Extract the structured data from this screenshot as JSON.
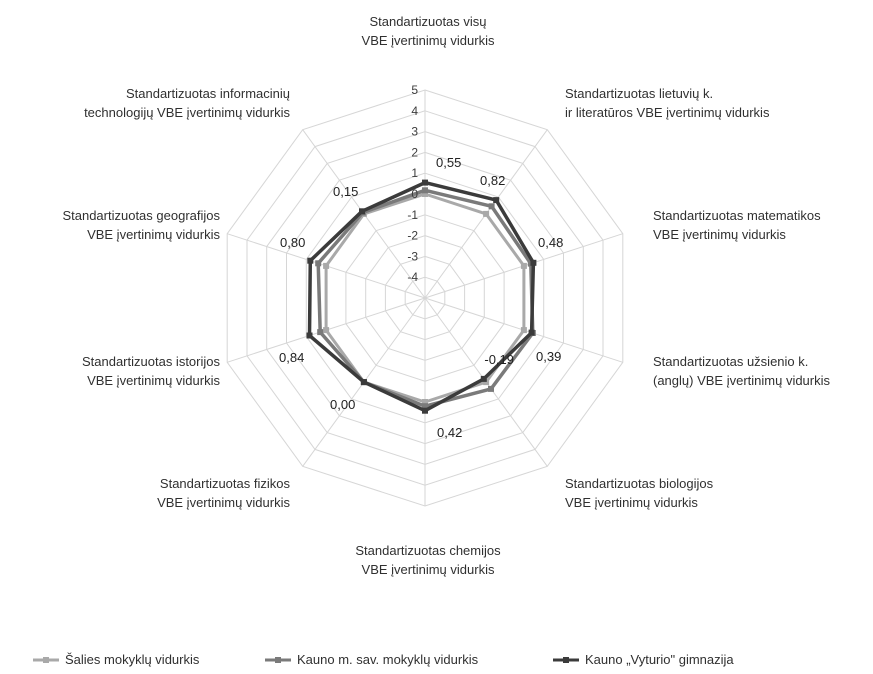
{
  "chart_data": {
    "type": "radar",
    "axes": [
      "Standartizuotas visų VBE įvertinimų vidurkis",
      "Standartizuotas lietuvių k. ir literatūros VBE įvertinimų vidurkis",
      "Standartizuotas matematikos VBE įvertinimų vidurkis",
      "Standartizuotas užsienio k. (anglų) VBE įvertinimų vidurkis",
      "Standartizuotas biologijos VBE įvertinimų vidurkis",
      "Standartizuotas chemijos VBE įvertinimų vidurkis",
      "Standartizuotas fizikos VBE įvertinimų vidurkis",
      "Standartizuotas istorijos VBE įvertinimų vidurkis",
      "Standartizuotas geografijos VBE įvertinimų vidurkis",
      "Standartizuotas informacinių technologijų VBE įvertinimų vidurkis"
    ],
    "axis_label_lines": [
      [
        "Standartizuotas visų",
        "VBE įvertinimų vidurkis"
      ],
      [
        "Standartizuotas lietuvių k.",
        "ir literatūros VBE įvertinimų vidurkis"
      ],
      [
        "Standartizuotas matematikos",
        "VBE įvertinimų vidurkis"
      ],
      [
        "Standartizuotas užsienio k.",
        "(anglų) VBE įvertinimų vidurkis"
      ],
      [
        "Standartizuotas biologijos",
        "VBE įvertinimų vidurkis"
      ],
      [
        "Standartizuotas chemijos",
        "VBE įvertinimų vidurkis"
      ],
      [
        "Standartizuotas fizikos",
        "VBE įvertinimų vidurkis"
      ],
      [
        "Standartizuotas istorijos",
        "VBE įvertinimų vidurkis"
      ],
      [
        "Standartizuotas geografijos",
        "VBE įvertinimų vidurkis"
      ],
      [
        "Standartizuotas informacinių",
        "technologijų VBE įvertinimų vidurkis"
      ]
    ],
    "ticks": [
      "5",
      "4",
      "3",
      "2",
      "1",
      "0",
      "-1",
      "-2",
      "-3",
      "-4"
    ],
    "rmin": -5,
    "rmax": 5,
    "series": [
      {
        "name": "Šalies mokyklų vidurkis",
        "color": "#a9a9a9",
        "values": [
          0,
          0,
          0,
          0,
          0,
          0,
          0,
          0,
          0,
          0
        ]
      },
      {
        "name": "Kauno m. sav. mokyklų vidurkis",
        "color": "#7a7a7a",
        "values": [
          0.18,
          0.45,
          0.35,
          0.45,
          0.4,
          0.2,
          0.0,
          0.3,
          0.4,
          0.08
        ]
      },
      {
        "name": "Kauno „Vyturio\" gimnazija",
        "color": "#3b3b3b",
        "values": [
          0.55,
          0.82,
          0.48,
          0.39,
          -0.19,
          0.42,
          0.0,
          0.84,
          0.8,
          0.15
        ]
      }
    ],
    "data_labels": [
      "0,55",
      "0,82",
      "0,48",
      "0,39",
      "-0,19",
      "0,42",
      "0,00",
      "0,84",
      "0,80",
      "0,15"
    ],
    "grid": true,
    "legend_position": "bottom"
  }
}
